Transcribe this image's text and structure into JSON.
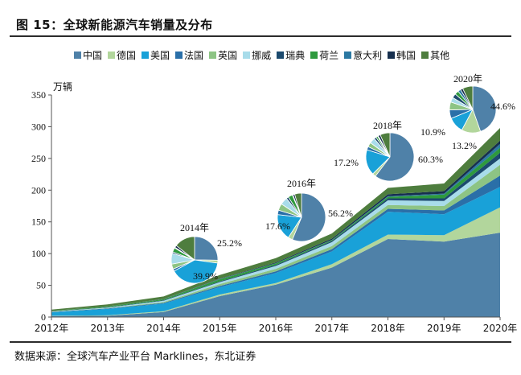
{
  "header": {
    "title": "图 15：全球新能源汽车销量及分布"
  },
  "footer": {
    "source": "数据来源：全球汽车产业平台 Marklines，东北证券"
  },
  "chart_data": {
    "type": "area",
    "stacked": true,
    "ylabel": "万辆",
    "ylim": [
      0,
      350
    ],
    "yticks": [
      0,
      50,
      100,
      150,
      200,
      250,
      300,
      350
    ],
    "categories": [
      "2012年",
      "2013年",
      "2014年",
      "2015年",
      "2016年",
      "2017年",
      "2018年",
      "2019年",
      "2020年"
    ],
    "legend_position": "top",
    "series": [
      {
        "name": "中国",
        "color": "#4f81a8",
        "values": [
          1.5,
          2,
          8,
          33,
          51,
          78,
          123,
          119,
          133
        ]
      },
      {
        "name": "德国",
        "color": "#b2d69c",
        "values": [
          0.5,
          0.8,
          1.3,
          2.5,
          2.5,
          5.5,
          7,
          10,
          40
        ]
      },
      {
        "name": "美国",
        "color": "#19a1d8",
        "values": [
          5.5,
          10,
          12,
          11.5,
          16,
          20,
          36,
          33,
          32
        ]
      },
      {
        "name": "法国",
        "color": "#2a6fa8",
        "values": [
          0.5,
          0.8,
          1,
          2,
          2.5,
          3.5,
          4.5,
          6,
          18
        ]
      },
      {
        "name": "英国",
        "color": "#8dc484",
        "values": [
          0.2,
          0.4,
          1.5,
          3,
          4,
          5,
          6,
          7,
          17
        ]
      },
      {
        "name": "挪威",
        "color": "#a8dcea",
        "values": [
          0.5,
          1,
          2,
          3,
          4.5,
          6,
          7.5,
          8,
          10
        ]
      },
      {
        "name": "瑞典",
        "color": "#1c4a6e",
        "values": [
          0.3,
          0.5,
          0.7,
          1,
          1.5,
          2,
          3,
          4,
          9
        ]
      },
      {
        "name": "荷兰",
        "color": "#2e9a3e",
        "values": [
          0.5,
          1.2,
          1.5,
          3.5,
          2.5,
          1.2,
          2.5,
          6,
          8
        ]
      },
      {
        "name": "意大利",
        "color": "#2b78a2",
        "values": [
          0.1,
          0.1,
          0.2,
          0.3,
          0.4,
          0.5,
          1,
          1.5,
          6
        ]
      },
      {
        "name": "韩国",
        "color": "#162f4e",
        "values": [
          0.1,
          0.2,
          0.3,
          0.5,
          1,
          2,
          3,
          4,
          5
        ]
      },
      {
        "name": "其他",
        "color": "#4e7d3e",
        "values": [
          2,
          3,
          4,
          6,
          7,
          8,
          10,
          12,
          20
        ]
      }
    ],
    "pies": [
      {
        "year": "2014年",
        "slices": [
          25.2,
          2,
          39.9,
          1.5,
          3.5,
          7.5,
          1,
          3,
          0.5,
          1.5,
          14.4
        ],
        "labels": [
          {
            "text": "25.2%",
            "slice": 0
          },
          {
            "text": "39.9%",
            "slice": 2
          }
        ]
      },
      {
        "year": "2016年",
        "slices": [
          56.2,
          3,
          17.6,
          3,
          4.5,
          5,
          1.5,
          3,
          0.4,
          1.2,
          4.6
        ],
        "labels": [
          {
            "text": "56.2%",
            "slice": 0
          },
          {
            "text": "17.6%",
            "slice": 2
          }
        ]
      },
      {
        "year": "2018年",
        "slices": [
          60.3,
          2.3,
          17.2,
          2.2,
          3,
          3.7,
          1.5,
          1.2,
          0.5,
          1.5,
          6.6
        ],
        "labels": [
          {
            "text": "60.3%",
            "slice": 0
          },
          {
            "text": "17.2%",
            "slice": 2
          }
        ]
      },
      {
        "year": "2020年",
        "slices": [
          44.6,
          13.2,
          10.9,
          6,
          5.5,
          3.3,
          3,
          2.7,
          2,
          1.7,
          7.1
        ],
        "labels": [
          {
            "text": "44.6%",
            "slice": 0
          },
          {
            "text": "13.2%",
            "slice": 1
          },
          {
            "text": "10.9%",
            "slice": 2
          }
        ]
      }
    ]
  }
}
